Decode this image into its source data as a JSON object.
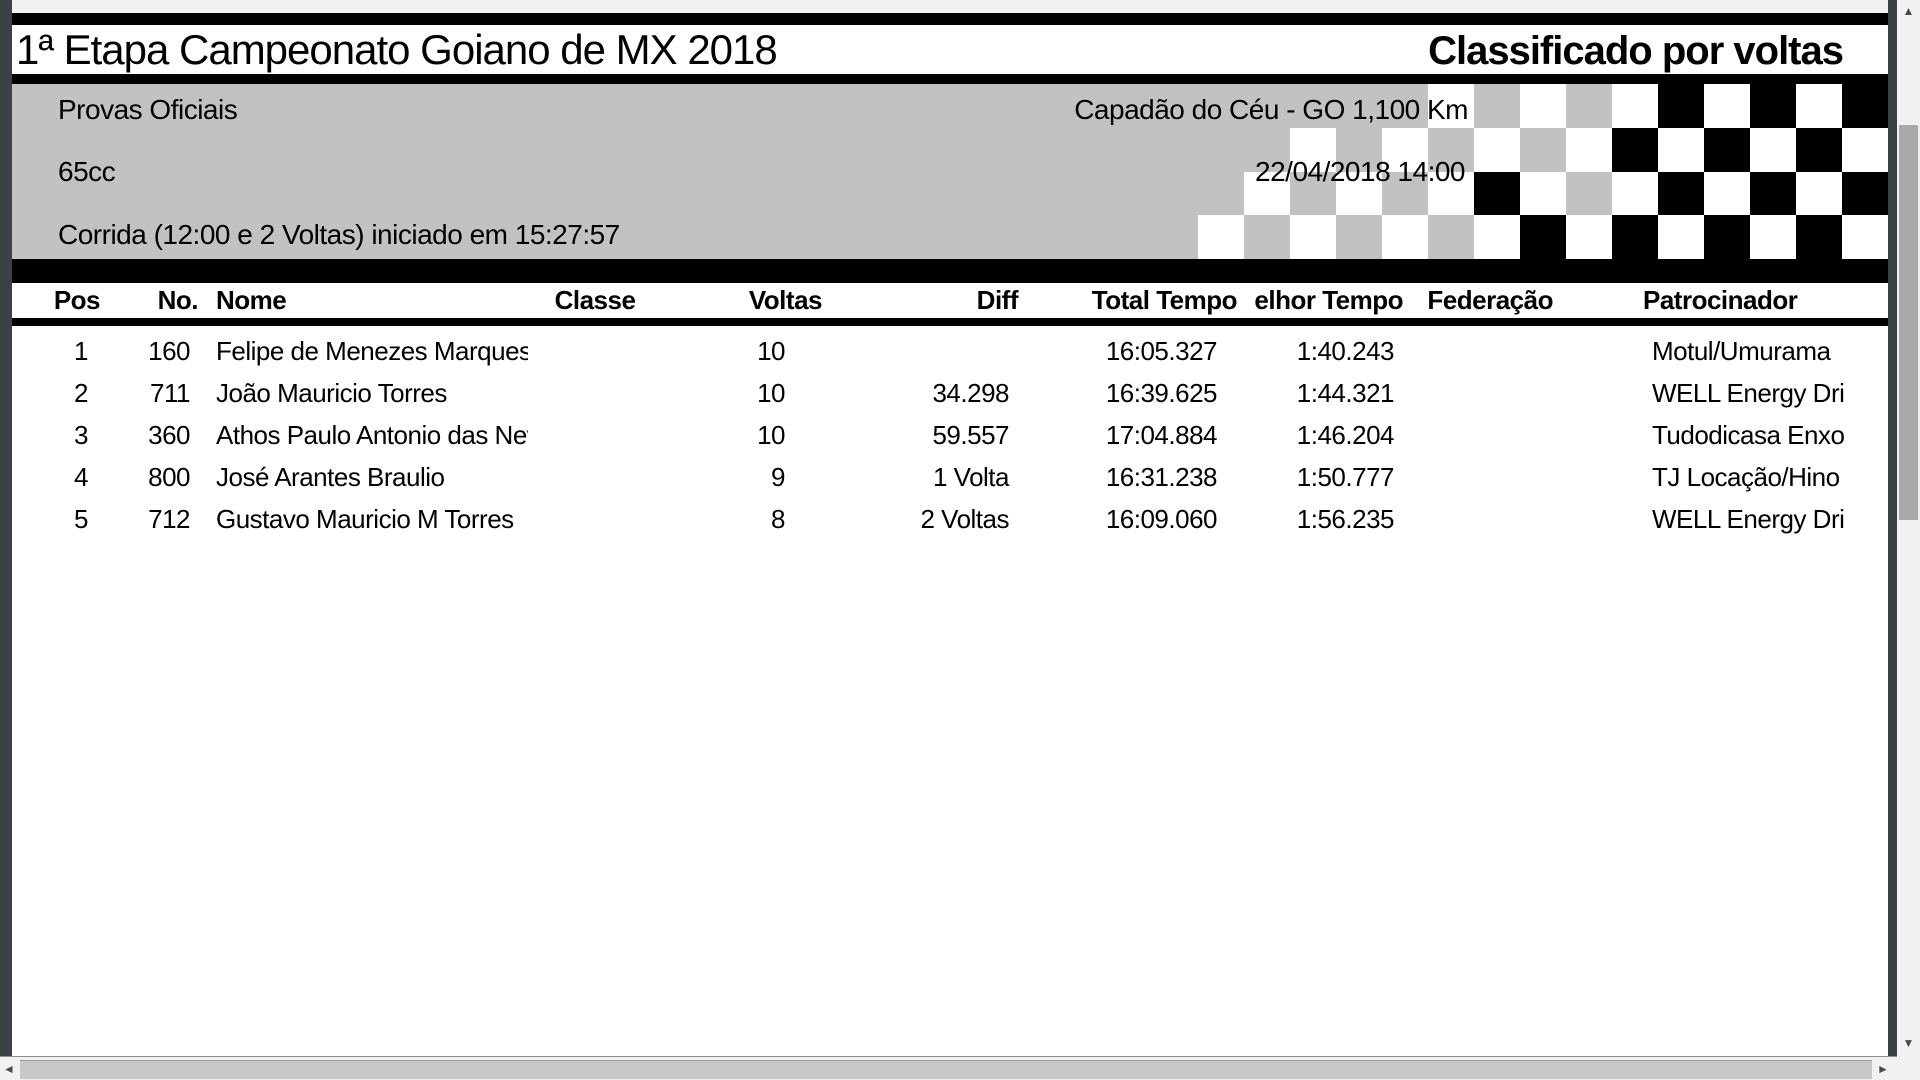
{
  "report": {
    "title": "1ª Etapa Campeonato Goiano de MX 2018",
    "classification_label": "Classificado por voltas",
    "header": {
      "series": "Provas Oficiais",
      "venue": "Capadão do Céu - GO 1,100 Km",
      "category": "65cc",
      "datetime": "22/04/2018 14:00",
      "race_info": "Corrida (12:00 e 2 Voltas) iniciado em 15:27:57",
      "flag": {
        "icon": "checkered-flag",
        "colors": {
          "white": "#ffffff",
          "black": "#000000",
          "gray": "#c2c2c2"
        },
        "pattern": [
          ".......w.w.wbwbwb",
          "....w.w.w.wbwbwbw",
          "...w.w.wbw.wbwbwb",
          "..w.w.w.wbwbwbwbw"
        ]
      }
    },
    "table": {
      "columns": [
        "Pos",
        "No.",
        "Nome",
        "Classe",
        "Voltas",
        "Diff",
        "Total Tempo",
        "elhor Tempo",
        "Federação",
        "Patrocinador"
      ],
      "rows": [
        {
          "pos": "1",
          "no": "160",
          "nome": "Felipe de Menezes Marques",
          "classe": "",
          "voltas": "10",
          "diff": "",
          "total_tempo": "16:05.327",
          "melhor_tempo": "1:40.243",
          "federacao": "",
          "patrocinador": "Motul/Umurama"
        },
        {
          "pos": "2",
          "no": "711",
          "nome": "João Mauricio Torres",
          "classe": "",
          "voltas": "10",
          "diff": "34.298",
          "total_tempo": "16:39.625",
          "melhor_tempo": "1:44.321",
          "federacao": "",
          "patrocinador": "WELL Energy Dri"
        },
        {
          "pos": "3",
          "no": "360",
          "nome": "Athos Paulo Antonio das Nev",
          "classe": "",
          "voltas": "10",
          "diff": "59.557",
          "total_tempo": "17:04.884",
          "melhor_tempo": "1:46.204",
          "federacao": "",
          "patrocinador": "Tudodicasa Enxo"
        },
        {
          "pos": "4",
          "no": "800",
          "nome": "José Arantes Braulio",
          "classe": "",
          "voltas": "9",
          "diff": "1 Volta",
          "total_tempo": "16:31.238",
          "melhor_tempo": "1:50.777",
          "federacao": "",
          "patrocinador": "TJ Locação/Hino"
        },
        {
          "pos": "5",
          "no": "712",
          "nome": "Gustavo Mauricio M Torres",
          "classe": "",
          "voltas": "8",
          "diff": "2 Voltas",
          "total_tempo": "16:09.060",
          "melhor_tempo": "1:56.235",
          "federacao": "",
          "patrocinador": "WELL Energy Dri"
        }
      ]
    },
    "colors": {
      "page_bg": "#ffffff",
      "header_bg": "#c2c2c2",
      "bar": "#000000",
      "frame": "#3c4146",
      "scroll_track": "#f1f1f1",
      "scroll_thumb": "#a9a9a9"
    },
    "icons": {
      "scroll_up": "▲",
      "scroll_down": "▼",
      "scroll_left": "◄",
      "scroll_right": "►"
    }
  }
}
